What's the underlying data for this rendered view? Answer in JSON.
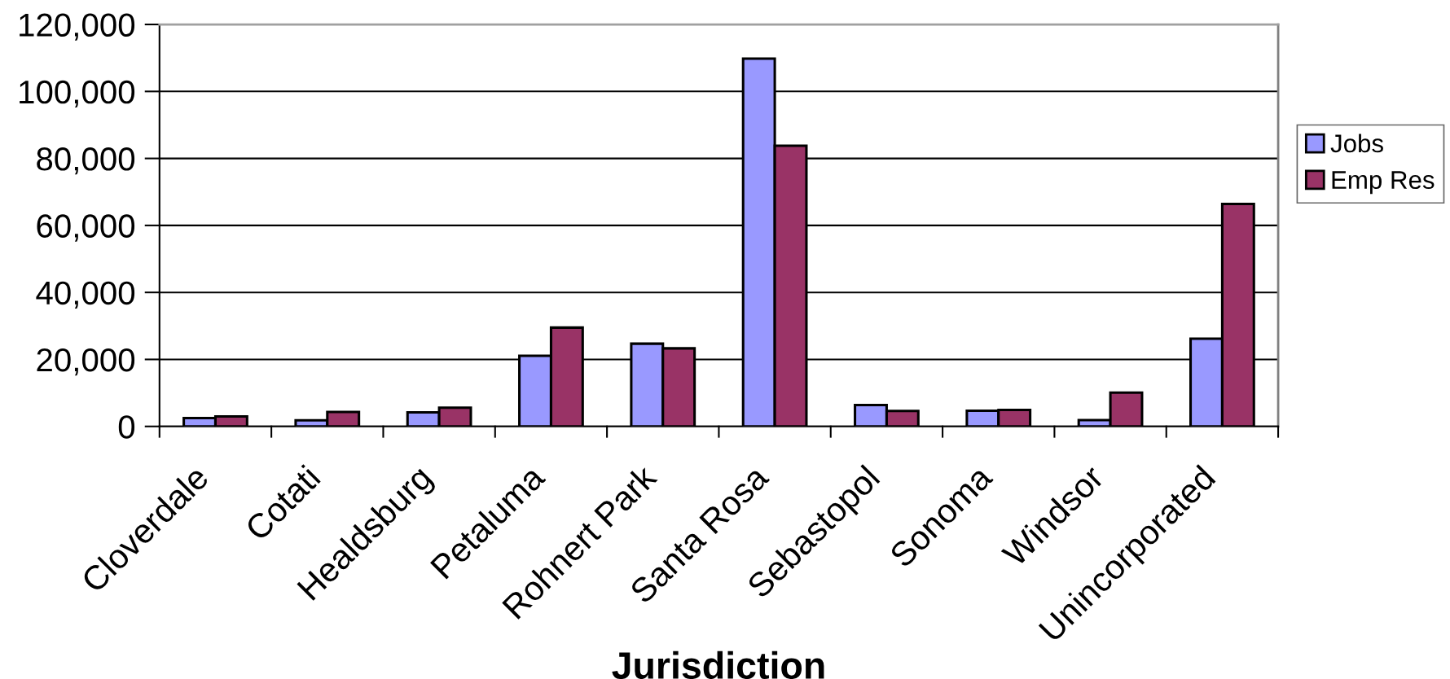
{
  "chart_data": {
    "type": "bar",
    "xlabel": "Jurisdiction",
    "categories": [
      "Cloverdale",
      "Cotati",
      "Healdsburg",
      "Petaluma",
      "Rohnert Park",
      "Santa Rosa",
      "Sebastopol",
      "Sonoma",
      "Windsor",
      "Unincorporated"
    ],
    "series": [
      {
        "name": "Jobs",
        "color": "#9999ff",
        "values": [
          2500,
          1800,
          4200,
          21100,
          24700,
          109800,
          6400,
          4700,
          1900,
          26200
        ]
      },
      {
        "name": "Emp Res",
        "color": "#993366",
        "values": [
          3000,
          4300,
          5600,
          29500,
          23300,
          83800,
          4600,
          4900,
          10100,
          66400
        ]
      }
    ],
    "ylim": [
      0,
      120000
    ],
    "yticks": [
      0,
      {
        "value": 20000,
        "label": "20,000"
      },
      {
        "value": 40000,
        "label": "40,000"
      },
      {
        "value": 60000,
        "label": "60,000"
      },
      {
        "value": 80000,
        "label": "80,000"
      },
      {
        "value": 100000,
        "label": "100,000"
      },
      {
        "value": 120000,
        "label": "120,000"
      }
    ],
    "grid": "y",
    "legend": "right"
  }
}
